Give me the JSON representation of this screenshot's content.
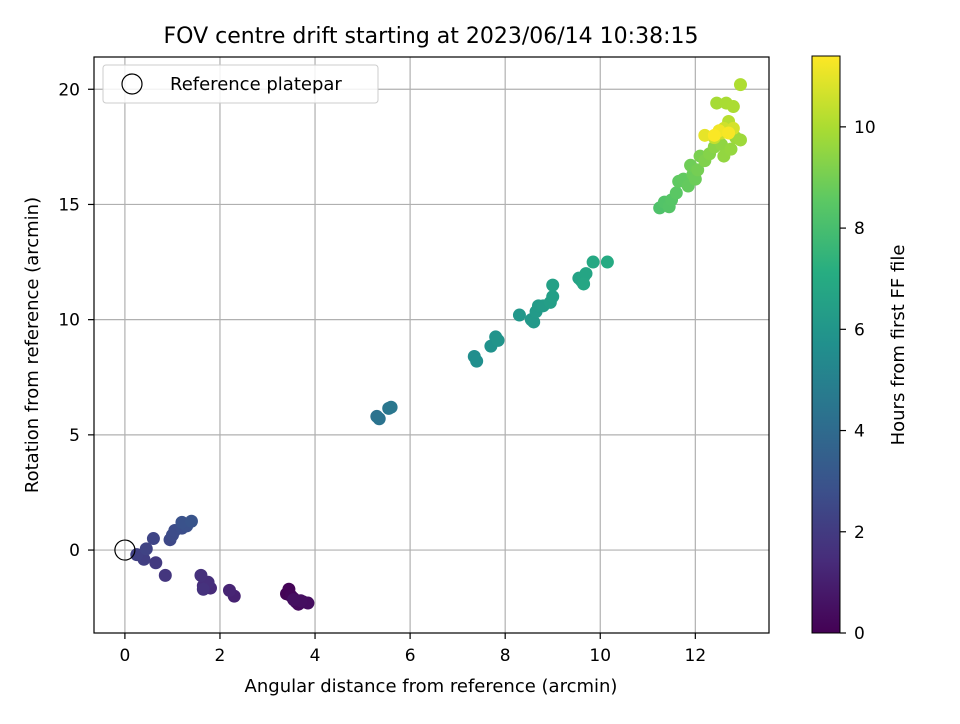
{
  "chart_data": {
    "type": "scatter",
    "title": "FOV centre drift starting at 2023/06/14 10:38:15",
    "xlabel": "Angular distance from reference (arcmin)",
    "ylabel": "Rotation from reference (arcmin)",
    "xlim": [
      -0.65,
      13.55
    ],
    "ylim": [
      -3.6,
      21.4
    ],
    "xticks": [
      0,
      2,
      4,
      6,
      8,
      10,
      12
    ],
    "yticks": [
      0,
      5,
      10,
      15,
      20
    ],
    "grid": true,
    "legend": {
      "placement": "top-left",
      "entries": [
        "Reference platepar"
      ]
    },
    "reference_point": {
      "x": 0,
      "y": 0,
      "marker": "open-circle"
    },
    "colorbar": {
      "label": "Hours from first FF file",
      "range": [
        0,
        11.4
      ],
      "ticks": [
        0,
        2,
        4,
        6,
        8,
        10
      ],
      "colormap": "viridis"
    },
    "points": [
      {
        "x": 3.4,
        "y": -1.9,
        "h": 0.05
      },
      {
        "x": 3.45,
        "y": -1.7,
        "h": 0.1
      },
      {
        "x": 3.5,
        "y": -2.0,
        "h": 0.15
      },
      {
        "x": 3.55,
        "y": -2.1,
        "h": 0.2
      },
      {
        "x": 3.6,
        "y": -2.25,
        "h": 0.25
      },
      {
        "x": 3.65,
        "y": -2.35,
        "h": 0.3
      },
      {
        "x": 3.75,
        "y": -2.25,
        "h": 0.35
      },
      {
        "x": 3.85,
        "y": -2.3,
        "h": 0.4
      },
      {
        "x": 3.7,
        "y": -2.2,
        "h": 0.45
      },
      {
        "x": 3.55,
        "y": -2.15,
        "h": 0.5
      },
      {
        "x": 2.3,
        "y": -2.0,
        "h": 1.1
      },
      {
        "x": 2.2,
        "y": -1.75,
        "h": 1.2
      },
      {
        "x": 1.8,
        "y": -1.65,
        "h": 1.4
      },
      {
        "x": 1.65,
        "y": -1.55,
        "h": 1.5
      },
      {
        "x": 1.75,
        "y": -1.4,
        "h": 1.55
      },
      {
        "x": 1.6,
        "y": -1.1,
        "h": 1.6
      },
      {
        "x": 1.65,
        "y": -1.7,
        "h": 1.65
      },
      {
        "x": 0.85,
        "y": -1.1,
        "h": 1.8
      },
      {
        "x": 0.65,
        "y": -0.55,
        "h": 1.95
      },
      {
        "x": 0.4,
        "y": -0.4,
        "h": 2.1
      },
      {
        "x": 0.25,
        "y": -0.2,
        "h": 2.2
      },
      {
        "x": 0.45,
        "y": 0.05,
        "h": 2.3
      },
      {
        "x": 0.6,
        "y": 0.5,
        "h": 2.4
      },
      {
        "x": 0.95,
        "y": 0.45,
        "h": 2.5
      },
      {
        "x": 1.0,
        "y": 0.65,
        "h": 2.6
      },
      {
        "x": 1.05,
        "y": 0.85,
        "h": 2.65
      },
      {
        "x": 1.2,
        "y": 0.95,
        "h": 2.75
      },
      {
        "x": 1.3,
        "y": 1.05,
        "h": 2.85
      },
      {
        "x": 1.2,
        "y": 1.2,
        "h": 2.9
      },
      {
        "x": 1.4,
        "y": 1.25,
        "h": 3.0
      },
      {
        "x": 5.3,
        "y": 5.8,
        "h": 4.3
      },
      {
        "x": 5.35,
        "y": 5.7,
        "h": 4.35
      },
      {
        "x": 5.55,
        "y": 6.15,
        "h": 4.5
      },
      {
        "x": 5.6,
        "y": 6.2,
        "h": 4.55
      },
      {
        "x": 7.35,
        "y": 8.4,
        "h": 5.6
      },
      {
        "x": 7.4,
        "y": 8.2,
        "h": 5.65
      },
      {
        "x": 7.7,
        "y": 8.85,
        "h": 5.8
      },
      {
        "x": 7.8,
        "y": 9.25,
        "h": 5.85
      },
      {
        "x": 7.85,
        "y": 9.1,
        "h": 5.9
      },
      {
        "x": 8.3,
        "y": 10.2,
        "h": 6.05
      },
      {
        "x": 8.55,
        "y": 10.0,
        "h": 6.1
      },
      {
        "x": 8.6,
        "y": 9.9,
        "h": 6.15
      },
      {
        "x": 8.65,
        "y": 10.35,
        "h": 6.2
      },
      {
        "x": 8.7,
        "y": 10.6,
        "h": 6.25
      },
      {
        "x": 8.8,
        "y": 10.6,
        "h": 6.3
      },
      {
        "x": 8.95,
        "y": 10.75,
        "h": 6.4
      },
      {
        "x": 9.0,
        "y": 11.0,
        "h": 6.45
      },
      {
        "x": 9.0,
        "y": 11.5,
        "h": 6.5
      },
      {
        "x": 9.55,
        "y": 11.8,
        "h": 6.6
      },
      {
        "x": 9.6,
        "y": 11.7,
        "h": 6.65
      },
      {
        "x": 9.65,
        "y": 11.85,
        "h": 6.7
      },
      {
        "x": 9.7,
        "y": 12.0,
        "h": 6.75
      },
      {
        "x": 9.65,
        "y": 11.55,
        "h": 6.8
      },
      {
        "x": 9.85,
        "y": 12.5,
        "h": 6.9
      },
      {
        "x": 10.15,
        "y": 12.5,
        "h": 7.0
      },
      {
        "x": 11.25,
        "y": 14.85,
        "h": 8.2
      },
      {
        "x": 11.35,
        "y": 15.1,
        "h": 8.3
      },
      {
        "x": 11.45,
        "y": 14.9,
        "h": 8.35
      },
      {
        "x": 11.5,
        "y": 15.2,
        "h": 8.4
      },
      {
        "x": 11.6,
        "y": 15.5,
        "h": 8.5
      },
      {
        "x": 11.65,
        "y": 16.0,
        "h": 8.6
      },
      {
        "x": 11.75,
        "y": 16.1,
        "h": 8.65
      },
      {
        "x": 11.85,
        "y": 15.8,
        "h": 8.7
      },
      {
        "x": 11.95,
        "y": 16.3,
        "h": 8.8
      },
      {
        "x": 12.0,
        "y": 16.1,
        "h": 8.85
      },
      {
        "x": 11.9,
        "y": 16.7,
        "h": 8.9
      },
      {
        "x": 12.05,
        "y": 16.5,
        "h": 9.0
      },
      {
        "x": 12.1,
        "y": 17.1,
        "h": 9.1
      },
      {
        "x": 12.2,
        "y": 16.9,
        "h": 9.2
      },
      {
        "x": 12.3,
        "y": 17.2,
        "h": 9.3
      },
      {
        "x": 12.4,
        "y": 17.5,
        "h": 9.4
      },
      {
        "x": 12.55,
        "y": 17.6,
        "h": 9.5
      },
      {
        "x": 12.6,
        "y": 17.1,
        "h": 9.55
      },
      {
        "x": 12.75,
        "y": 17.4,
        "h": 9.6
      },
      {
        "x": 12.85,
        "y": 17.9,
        "h": 9.7
      },
      {
        "x": 12.95,
        "y": 17.8,
        "h": 9.75
      },
      {
        "x": 12.45,
        "y": 19.4,
        "h": 9.9
      },
      {
        "x": 12.65,
        "y": 19.4,
        "h": 9.95
      },
      {
        "x": 12.8,
        "y": 19.25,
        "h": 10.0
      },
      {
        "x": 12.95,
        "y": 20.2,
        "h": 10.05
      },
      {
        "x": 12.7,
        "y": 18.6,
        "h": 10.2
      },
      {
        "x": 12.4,
        "y": 17.9,
        "h": 10.4
      },
      {
        "x": 12.55,
        "y": 18.1,
        "h": 10.5
      },
      {
        "x": 12.6,
        "y": 18.3,
        "h": 10.6
      },
      {
        "x": 12.8,
        "y": 18.3,
        "h": 10.7
      },
      {
        "x": 12.2,
        "y": 18.0,
        "h": 11.0
      },
      {
        "x": 12.5,
        "y": 18.2,
        "h": 11.2
      },
      {
        "x": 12.7,
        "y": 18.1,
        "h": 11.3
      },
      {
        "x": 12.4,
        "y": 18.0,
        "h": 11.35
      }
    ]
  }
}
